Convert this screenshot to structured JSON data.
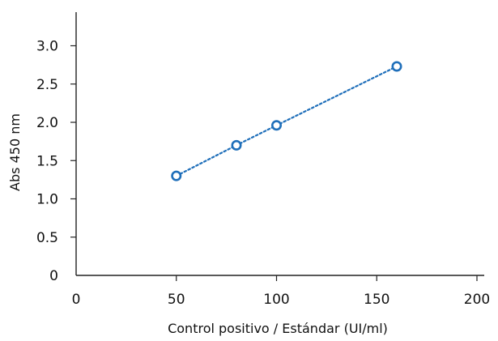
{
  "chart_data": {
    "type": "scatter",
    "title": "",
    "xlabel": "Control positivo / Estándar (UI/ml)",
    "ylabel": "Abs 450 nm",
    "xlim": [
      0,
      200
    ],
    "ylim": [
      0,
      3.3
    ],
    "x_ticks": [
      "0",
      "50",
      "100",
      "150",
      "200"
    ],
    "y_ticks": [
      "0",
      "0.5",
      "1.0",
      "1.5",
      "2.0",
      "2.5",
      "3.0"
    ],
    "grid": false,
    "series": [
      {
        "x": [
          50,
          80,
          100,
          160
        ],
        "y": [
          1.3,
          1.7,
          1.96,
          2.73
        ],
        "marker": "open-circle",
        "line": "dotted",
        "color": "#1f6fba"
      }
    ]
  }
}
